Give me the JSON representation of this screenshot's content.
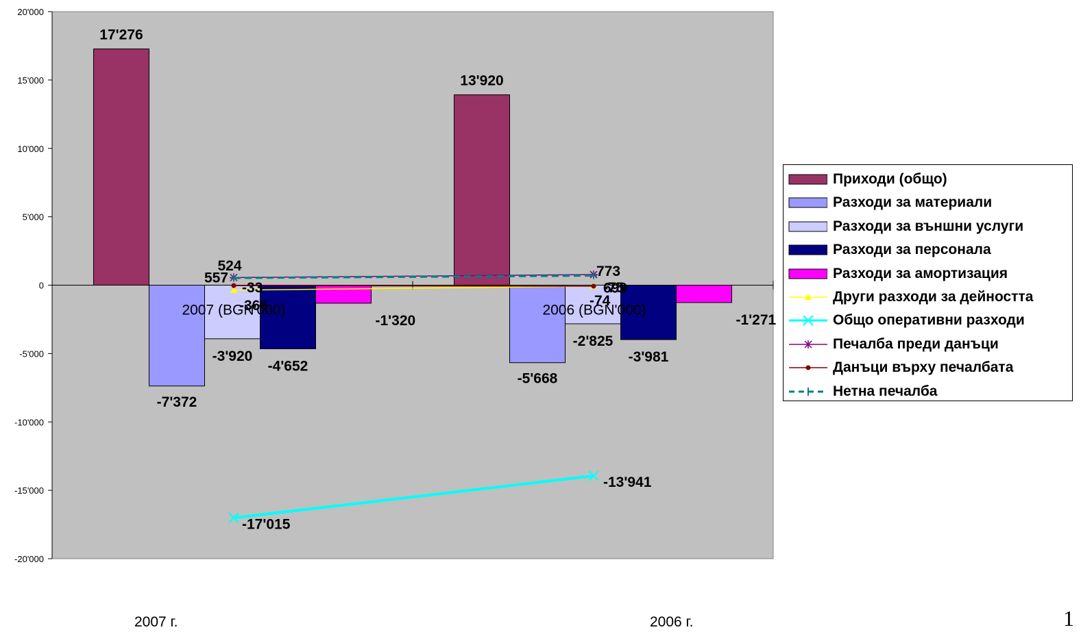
{
  "chart_data": {
    "type": "bar",
    "categories": [
      "2007 (BGN'000)",
      "2006 (BGN'000)"
    ],
    "ylim": [
      -20000,
      20000
    ],
    "y_ticks": [
      "20'000",
      "15'000",
      "10'000",
      "5'000",
      "0",
      "-5'000",
      "-10'000",
      "-15'000",
      "-20'000"
    ],
    "grid": false,
    "legend_position": "right",
    "bar_series": [
      {
        "name": "Приходи (общо)",
        "color": "#993366",
        "values": [
          17276,
          13920
        ],
        "labels": [
          "17'276",
          "13'920"
        ]
      },
      {
        "name": "Разходи за материали",
        "color": "#9999FF",
        "values": [
          -7372,
          -5668
        ],
        "labels": [
          "-7'372",
          "-5'668"
        ]
      },
      {
        "name": "Разходи за външни услуги",
        "color": "#CCCCFF",
        "values": [
          -3920,
          -2825
        ],
        "labels": [
          "-3'920",
          "-2'825"
        ]
      },
      {
        "name": "Разходи за персонала",
        "color": "#000080",
        "values": [
          -4652,
          -3981
        ],
        "labels": [
          "-4'652",
          "-3'981"
        ]
      },
      {
        "name": "Разходи за амортизация",
        "color": "#FF00FF",
        "values": [
          -1320,
          -1271
        ],
        "labels": [
          "-1'320",
          "-1'271"
        ]
      }
    ],
    "line_series": [
      {
        "name": "Други разходи за дейността",
        "color": "#FFFF00",
        "marker": "triangle",
        "values": [
          -366,
          -74
        ],
        "labels": [
          "-366",
          "-74"
        ]
      },
      {
        "name": "Общо оперативни разходи",
        "color": "#00FFFF",
        "marker": "x",
        "values": [
          -17015,
          -13941
        ],
        "labels": [
          "-17'015",
          "-13'941"
        ]
      },
      {
        "name": "Печалба преди данъци",
        "color": "#800080",
        "marker": "star",
        "values": [
          557,
          773
        ],
        "labels": [
          "557",
          "773"
        ]
      },
      {
        "name": "Данъци върху печалбата",
        "color": "#800000",
        "marker": "dot",
        "values": [
          -33,
          -75
        ],
        "labels": [
          "-33",
          "-75"
        ]
      },
      {
        "name": "Нетна печалба",
        "color": "#008080",
        "marker": "plus",
        "dashed": true,
        "values": [
          524,
          699
        ],
        "labels": [
          "524",
          "699"
        ]
      }
    ]
  },
  "bottom_labels": [
    "2007 г.",
    "2006 г."
  ],
  "page_number": "1"
}
